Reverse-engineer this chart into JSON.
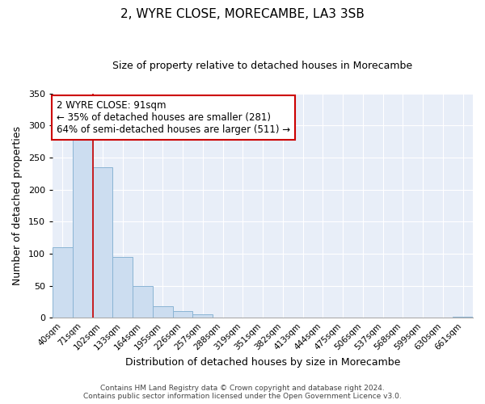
{
  "title": "2, WYRE CLOSE, MORECAMBE, LA3 3SB",
  "subtitle": "Size of property relative to detached houses in Morecambe",
  "xlabel": "Distribution of detached houses by size in Morecambe",
  "ylabel": "Number of detached properties",
  "bin_labels": [
    "40sqm",
    "71sqm",
    "102sqm",
    "133sqm",
    "164sqm",
    "195sqm",
    "226sqm",
    "257sqm",
    "288sqm",
    "319sqm",
    "351sqm",
    "382sqm",
    "413sqm",
    "444sqm",
    "475sqm",
    "506sqm",
    "537sqm",
    "568sqm",
    "599sqm",
    "630sqm",
    "661sqm"
  ],
  "bin_values": [
    110,
    278,
    235,
    95,
    49,
    18,
    11,
    5,
    1,
    0,
    0,
    1,
    0,
    0,
    0,
    0,
    0,
    0,
    0,
    0,
    2
  ],
  "bar_color": "#ccddf0",
  "bar_edgecolor": "#8ab4d4",
  "ylim": [
    0,
    350
  ],
  "yticks": [
    0,
    50,
    100,
    150,
    200,
    250,
    300,
    350
  ],
  "property_line_color": "#cc0000",
  "annotation_text": "2 WYRE CLOSE: 91sqm\n← 35% of detached houses are smaller (281)\n64% of semi-detached houses are larger (511) →",
  "annotation_box_color": "#ffffff",
  "annotation_box_edgecolor": "#cc0000",
  "footer_line1": "Contains HM Land Registry data © Crown copyright and database right 2024.",
  "footer_line2": "Contains public sector information licensed under the Open Government Licence v3.0.",
  "background_color": "#e8eef8",
  "figsize": [
    6.0,
    5.0
  ],
  "dpi": 100
}
